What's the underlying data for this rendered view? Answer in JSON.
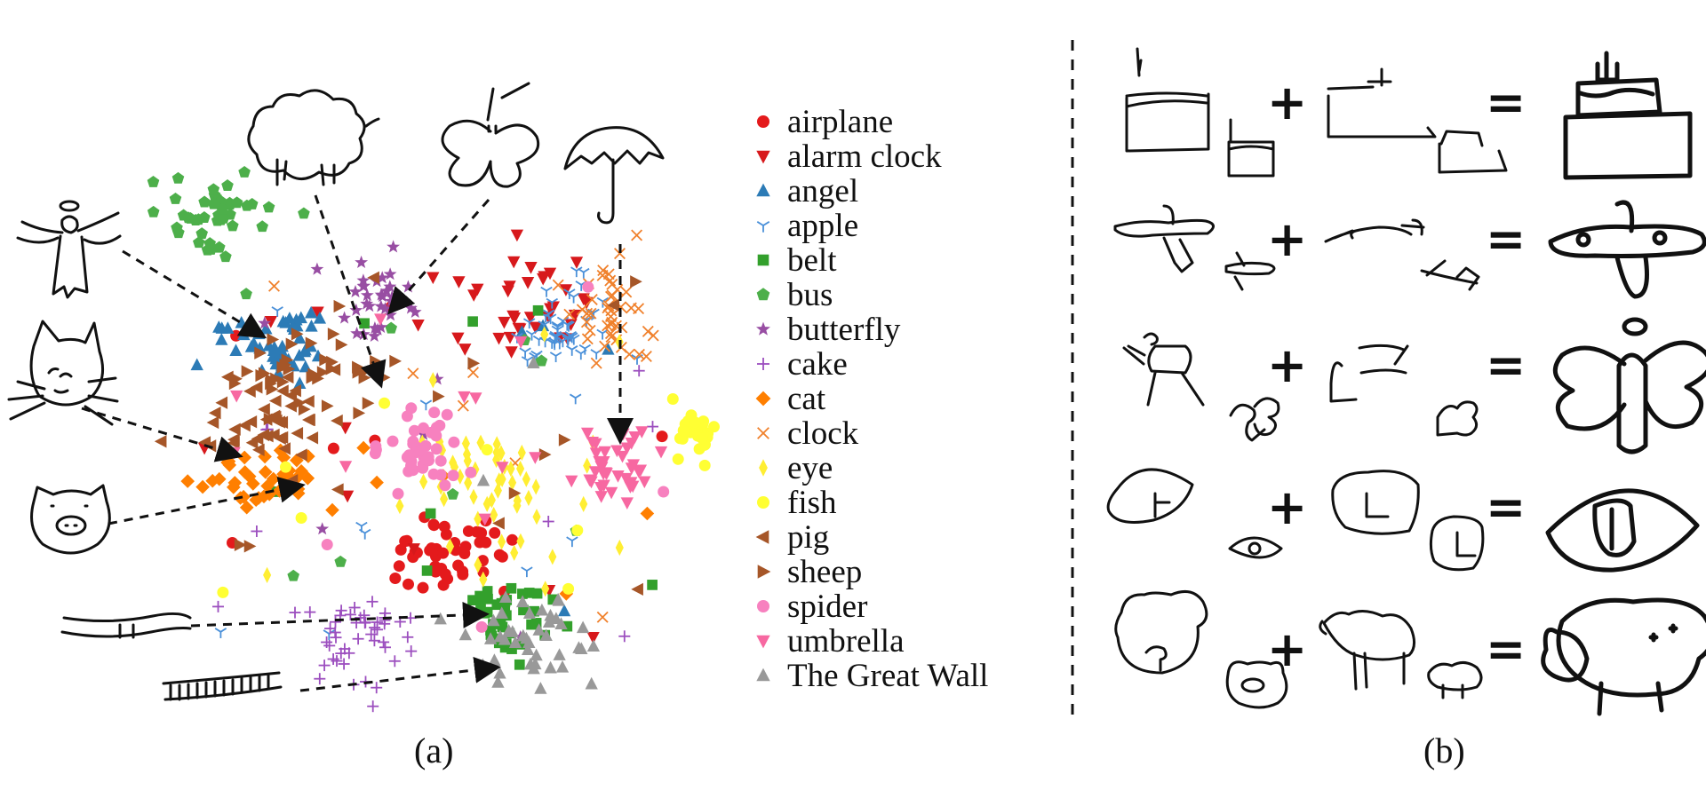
{
  "chart_data": {
    "type": "scatter",
    "legend_position": "right",
    "grid": false,
    "series": [
      {
        "name": "airplane",
        "marker": "circle",
        "color": "#e41a1c"
      },
      {
        "name": "alarm clock",
        "marker": "triangle-down",
        "color": "#d7191c"
      },
      {
        "name": "angel",
        "marker": "triangle-up",
        "color": "#2c7bb6"
      },
      {
        "name": "apple",
        "marker": "tri-down",
        "color": "#4a90d9"
      },
      {
        "name": "belt",
        "marker": "square",
        "color": "#33a02c"
      },
      {
        "name": "bus",
        "marker": "pentagon",
        "color": "#4daf4a"
      },
      {
        "name": "butterfly",
        "marker": "star",
        "color": "#984ea3"
      },
      {
        "name": "cake",
        "marker": "plus",
        "color": "#9c4fbf"
      },
      {
        "name": "cat",
        "marker": "diamond",
        "color": "#ff7f00"
      },
      {
        "name": "clock",
        "marker": "x",
        "color": "#f0812c"
      },
      {
        "name": "eye",
        "marker": "thin-diamond",
        "color": "#ffee33"
      },
      {
        "name": "fish",
        "marker": "circle",
        "color": "#ffff33"
      },
      {
        "name": "pig",
        "marker": "triangle-left",
        "color": "#a65628"
      },
      {
        "name": "sheep",
        "marker": "triangle-right",
        "color": "#a65628"
      },
      {
        "name": "spider",
        "marker": "circle",
        "color": "#f781bf"
      },
      {
        "name": "umbrella",
        "marker": "triangle-down",
        "color": "#f768a1"
      },
      {
        "name": "The Great Wall",
        "marker": "triangle-up",
        "color": "#999999"
      }
    ]
  },
  "captions": {
    "a": "(a)",
    "b": "(b)"
  },
  "operators": {
    "plus": "+",
    "equals": "="
  },
  "colors": {
    "ink": "#111111",
    "background": "#ffffff"
  }
}
